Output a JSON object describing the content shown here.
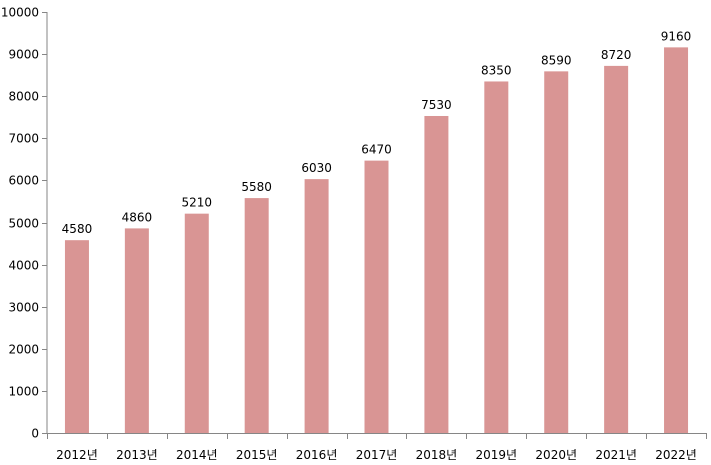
{
  "chart_data": {
    "type": "bar",
    "categories": [
      "2012년",
      "2013년",
      "2014년",
      "2015년",
      "2016년",
      "2017년",
      "2018년",
      "2019년",
      "2020년",
      "2021년",
      "2022년"
    ],
    "values": [
      4580,
      4860,
      5210,
      5580,
      6030,
      6470,
      7530,
      8350,
      8590,
      8720,
      9160
    ],
    "data_labels": [
      "4580",
      "4860",
      "5210",
      "5580",
      "6030",
      "6470",
      "7530",
      "8350",
      "8590",
      "8720",
      "9160"
    ],
    "y_ticks": [
      "0",
      "1000",
      "2000",
      "3000",
      "4000",
      "5000",
      "6000",
      "7000",
      "8000",
      "9000",
      "10000"
    ],
    "ylim": [
      0,
      10000
    ],
    "y_step": 1000,
    "title": "",
    "xlabel": "",
    "ylabel": "",
    "grid": false,
    "legend": "none",
    "colors": {
      "bar": "#d99594",
      "axis": "#868686"
    }
  }
}
